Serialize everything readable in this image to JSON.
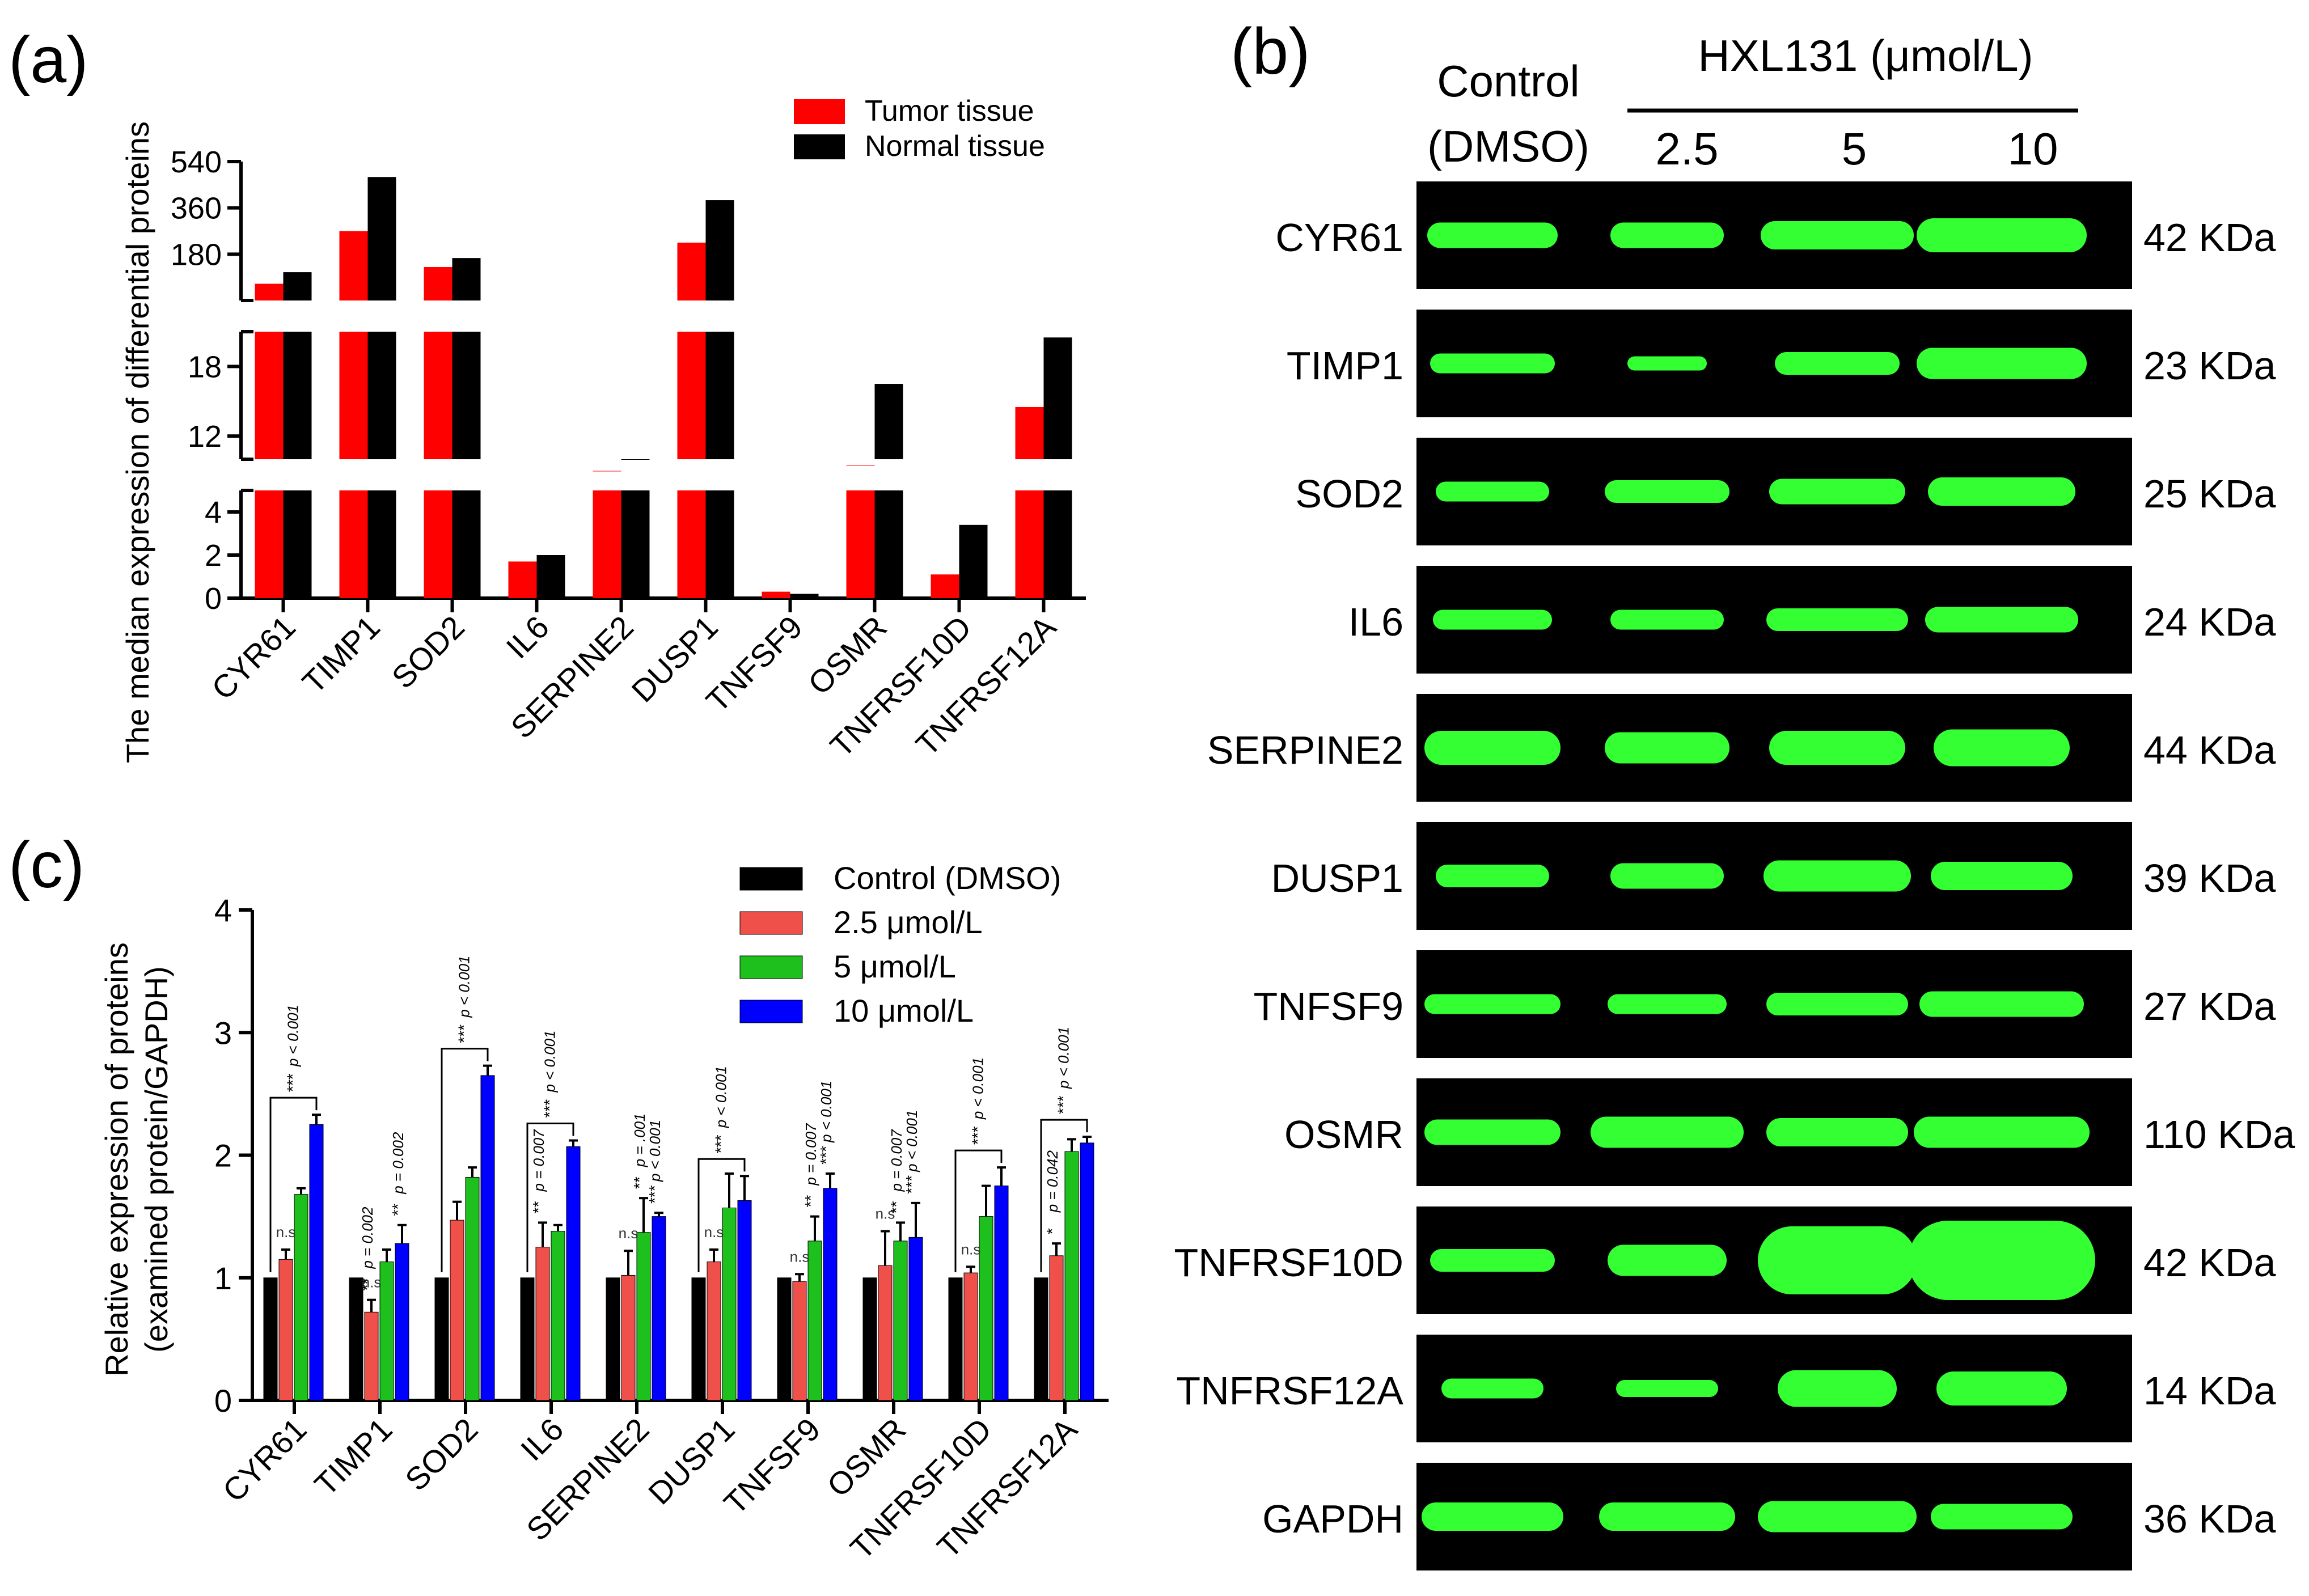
{
  "panel_a": {
    "label": "(a)",
    "chart_data": {
      "type": "bar",
      "categories": [
        "CYR61",
        "TIMP1",
        "SOD2",
        "IL6",
        "SERPINE2",
        "DUSP1",
        "TNFSF9",
        "OSMR",
        "TNFRSF10D",
        "TNFRSF12A"
      ],
      "series": [
        {
          "name": "Tumor tissue",
          "color": "#ff0000",
          "values": [
            65,
            270,
            130,
            1.7,
            9,
            225,
            0.3,
            9.5,
            1.1,
            14.5
          ]
        },
        {
          "name": "Normal tissue",
          "color": "#000000",
          "values": [
            110,
            480,
            165,
            2.0,
            10,
            390,
            0.2,
            16.5,
            3.4,
            20.5
          ]
        }
      ],
      "ylabel": "The median expression of differential proteins",
      "broken_axis": true,
      "segments": [
        {
          "range": [
            0,
            5
          ],
          "ticks": [
            "0",
            "2",
            "4"
          ],
          "tick_values": [
            0,
            2,
            4
          ]
        },
        {
          "range": [
            10,
            21
          ],
          "ticks": [
            "12",
            "18"
          ],
          "tick_values": [
            12,
            18
          ]
        },
        {
          "range": [
            0,
            540
          ],
          "ticks": [
            "180",
            "360",
            "540"
          ],
          "tick_values": [
            180,
            360,
            540
          ]
        }
      ],
      "legend": [
        "Tumor tissue",
        "Normal tissue"
      ],
      "legend_position": "top-right"
    }
  },
  "panel_b": {
    "label": "(b)",
    "header": {
      "control_line1": "Control",
      "control_line2": "(DMSO)",
      "treatment": "HXL131 (μmol/L)",
      "doses": [
        "2.5",
        "5",
        "10"
      ]
    },
    "blots": [
      {
        "protein": "CYR61",
        "mw": "42 KDa"
      },
      {
        "protein": "TIMP1",
        "mw": "23 KDa"
      },
      {
        "protein": "SOD2",
        "mw": "25 KDa"
      },
      {
        "protein": "IL6",
        "mw": "24 KDa"
      },
      {
        "protein": "SERPINE2",
        "mw": "44 KDa"
      },
      {
        "protein": "DUSP1",
        "mw": "39 KDa"
      },
      {
        "protein": "TNFSF9",
        "mw": "27 KDa"
      },
      {
        "protein": "OSMR",
        "mw": "110 KDa"
      },
      {
        "protein": "TNFRSF10D",
        "mw": "42 KDa"
      },
      {
        "protein": "TNFRSF12A",
        "mw": "14 KDa"
      },
      {
        "protein": "GAPDH",
        "mw": "36 KDa"
      }
    ]
  },
  "panel_c": {
    "label": "(c)",
    "chart_data": {
      "type": "bar",
      "categories": [
        "CYR61",
        "TIMP1",
        "SOD2",
        "IL6",
        "SERPINE2",
        "DUSP1",
        "TNFSF9",
        "OSMR",
        "TNFRSF10D",
        "TNFRSF12A"
      ],
      "series": [
        {
          "name": "Control (DMSO)",
          "color": "#000000",
          "values": [
            1,
            1,
            1,
            1,
            1,
            1,
            1,
            1,
            1,
            1
          ],
          "errors": [
            0,
            0,
            0,
            0,
            0,
            0,
            0,
            0,
            0,
            0
          ]
        },
        {
          "name": "2.5 μmol/L",
          "color": "#f0504a",
          "values": [
            1.15,
            0.72,
            1.47,
            1.25,
            1.02,
            1.13,
            0.97,
            1.1,
            1.04,
            1.18
          ],
          "errors": [
            0.08,
            0.1,
            0.15,
            0.2,
            0.2,
            0.1,
            0.06,
            0.28,
            0.05,
            0.1
          ]
        },
        {
          "name": "5 μmol/L",
          "color": "#1dc01d",
          "values": [
            1.68,
            1.13,
            1.82,
            1.38,
            1.37,
            1.57,
            1.3,
            1.3,
            1.5,
            2.03
          ],
          "errors": [
            0.05,
            0.1,
            0.08,
            0.05,
            0.28,
            0.28,
            0.2,
            0.15,
            0.25,
            0.1
          ]
        },
        {
          "name": "10 μmol/L",
          "color": "#0000ff",
          "values": [
            2.25,
            1.28,
            2.65,
            2.07,
            1.5,
            1.63,
            1.73,
            1.33,
            1.75,
            2.1
          ],
          "errors": [
            0.08,
            0.15,
            0.08,
            0.05,
            0.03,
            0.2,
            0.12,
            0.28,
            0.15,
            0.05
          ]
        }
      ],
      "ylabel_line1": "Relative expression of proteins",
      "ylabel_line2": "(examined protein/GAPDH)",
      "ylim": [
        0,
        4
      ],
      "yticks": [
        "0",
        "1",
        "2",
        "3",
        "4"
      ],
      "legend_position": "top-right",
      "significance": [
        {
          "category": "CYR61",
          "ns": "n.s",
          "marks": [],
          "bracket": "***",
          "p_bracket": "p < 0.001"
        },
        {
          "category": "TIMP1",
          "ns": "n.s",
          "marks": [
            {
              "series": 1,
              "stars": "**",
              "p": "p = 0.002"
            },
            {
              "series": 3,
              "stars": "**",
              "p": "p = 0.002"
            }
          ],
          "bracket": "",
          "p_bracket": ""
        },
        {
          "category": "SOD2",
          "ns": "",
          "marks": [],
          "bracket": "***",
          "p_bracket": "p < 0.001"
        },
        {
          "category": "IL6",
          "ns": "",
          "marks": [
            {
              "series": 1,
              "stars": "**",
              "p": "p = 0.007"
            }
          ],
          "bracket": "***",
          "p_bracket": "p < 0.001"
        },
        {
          "category": "SERPINE2",
          "ns": "n.s",
          "marks": [
            {
              "series": 2,
              "stars": "**",
              "p": "p = .001"
            },
            {
              "series": 3,
              "stars": "***",
              "p": "p < 0.001"
            }
          ],
          "bracket": "",
          "p_bracket": ""
        },
        {
          "category": "DUSP1",
          "ns": "n.s",
          "marks": [],
          "bracket": "***",
          "p_bracket": "p < 0.001"
        },
        {
          "category": "TNFSF9",
          "ns": "n.s",
          "marks": [
            {
              "series": 2,
              "stars": "**",
              "p": "p = 0.007"
            },
            {
              "series": 3,
              "stars": "***",
              "p": "p < 0.001"
            }
          ],
          "bracket": "",
          "p_bracket": ""
        },
        {
          "category": "OSMR",
          "ns": "n.s",
          "marks": [
            {
              "series": 2,
              "stars": "**",
              "p": "p = 0.007"
            },
            {
              "series": 3,
              "stars": "***",
              "p": "p < 0.001"
            }
          ],
          "bracket": "",
          "p_bracket": ""
        },
        {
          "category": "TNFRSF10D",
          "ns": "n.s",
          "marks": [],
          "bracket": "***",
          "p_bracket": "p < 0.001"
        },
        {
          "category": "TNFRSF12A",
          "ns": "",
          "marks": [
            {
              "series": 1,
              "stars": "*",
              "p": "p = 0.042"
            }
          ],
          "bracket": "***",
          "p_bracket": "p < 0.001"
        }
      ]
    }
  }
}
